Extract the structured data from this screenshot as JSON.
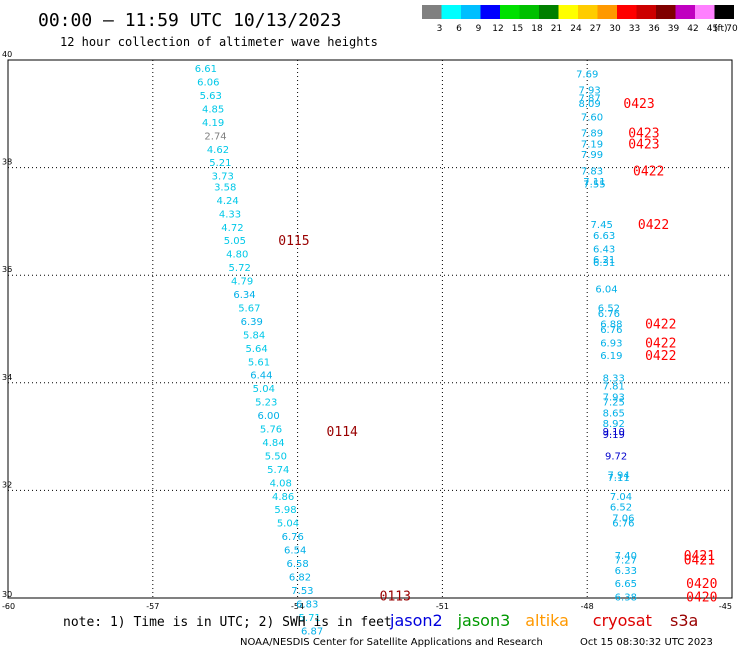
{
  "header": {
    "title": "00:00 – 11:59 UTC 10/13/2023",
    "subtitle": "12 hour collection of altimeter wave heights"
  },
  "legend_scale": {
    "colors": [
      "#808080",
      "#00ffff",
      "#00bfff",
      "#0000ff",
      "#00e000",
      "#00c000",
      "#008000",
      "#ffff00",
      "#ffcc00",
      "#ff9900",
      "#ff0000",
      "#cc0000",
      "#800000",
      "#c000c0",
      "#ff80ff",
      "#000000"
    ],
    "labels": [
      "3",
      "6",
      "9",
      "12",
      "15",
      "18",
      "21",
      "24",
      "27",
      "30",
      "33",
      "36",
      "39",
      "42",
      "45",
      "70"
    ],
    "unit": "(ft)"
  },
  "footer": {
    "note": "note: 1) Time is in UTC; 2) SWH is in feet",
    "credit": "NOAA/NESDIS Center for Satellite Applications and Research",
    "timestamp": "Oct 15 08:30:32 UTC 2023",
    "satellites": [
      {
        "name": "jason2",
        "color": "#0000dd"
      },
      {
        "name": "jason3",
        "color": "#009900"
      },
      {
        "name": "altika",
        "color": "#ff9900"
      },
      {
        "name": "cryosat",
        "color": "#dd0000"
      },
      {
        "name": "s3a",
        "color": "#990000"
      }
    ]
  },
  "chart_data": {
    "type": "scatter",
    "xlim": [
      -60,
      -45
    ],
    "ylim": [
      30,
      40
    ],
    "x_ticks": [
      -60,
      -57,
      -54,
      -51,
      -48,
      -45
    ],
    "y_ticks": [
      30,
      32,
      34,
      36,
      38,
      40
    ],
    "grid": true,
    "track_labels": [
      {
        "text": "0115",
        "x": -54.4,
        "y": 36.65,
        "color": "#990000"
      },
      {
        "text": "0114",
        "x": -53.4,
        "y": 33.1,
        "color": "#990000"
      },
      {
        "text": "0113",
        "x": -52.3,
        "y": 30.05,
        "color": "#990000"
      },
      {
        "text": "0423",
        "x": -47.25,
        "y": 39.2,
        "color": "#ff0000"
      },
      {
        "text": "0423",
        "x": -47.15,
        "y": 38.65,
        "color": "#ff0000"
      },
      {
        "text": "0423",
        "x": -47.15,
        "y": 38.45,
        "color": "#ff0000"
      },
      {
        "text": "0422",
        "x": -47.05,
        "y": 37.95,
        "color": "#ff0000"
      },
      {
        "text": "0422",
        "x": -46.95,
        "y": 36.95,
        "color": "#ff0000"
      },
      {
        "text": "0422",
        "x": -46.8,
        "y": 35.1,
        "color": "#ff0000"
      },
      {
        "text": "0422",
        "x": -46.8,
        "y": 34.75,
        "color": "#ff0000"
      },
      {
        "text": "0422",
        "x": -46.8,
        "y": 34.52,
        "color": "#ff0000"
      },
      {
        "text": "0421",
        "x": -46.0,
        "y": 30.8,
        "color": "#ff0000"
      },
      {
        "text": "0421",
        "x": -46.0,
        "y": 30.72,
        "color": "#ff0000"
      },
      {
        "text": "0420",
        "x": -45.95,
        "y": 30.28,
        "color": "#ff0000"
      },
      {
        "text": "0420",
        "x": -45.95,
        "y": 30.03,
        "color": "#ff0000"
      }
    ],
    "points": [
      {
        "label": "6.61",
        "x": -55.9,
        "y": 39.85,
        "color": "#00c8e8"
      },
      {
        "label": "6.06",
        "x": -55.85,
        "y": 39.6,
        "color": "#00c8e8"
      },
      {
        "label": "5.63",
        "x": -55.8,
        "y": 39.35,
        "color": "#00c8e8"
      },
      {
        "label": "4.85",
        "x": -55.75,
        "y": 39.1,
        "color": "#00c8e8"
      },
      {
        "label": "4.19",
        "x": -55.75,
        "y": 38.85,
        "color": "#00c8e8"
      },
      {
        "label": "2.74",
        "x": -55.7,
        "y": 38.6,
        "color": "#808080"
      },
      {
        "label": "4.62",
        "x": -55.65,
        "y": 38.35,
        "color": "#00c8e8"
      },
      {
        "label": "5.21",
        "x": -55.6,
        "y": 38.1,
        "color": "#00c8e8"
      },
      {
        "label": "3.73",
        "x": -55.55,
        "y": 37.85,
        "color": "#00c8e8"
      },
      {
        "label": "3.58",
        "x": -55.5,
        "y": 37.65,
        "color": "#00c8e8"
      },
      {
        "label": "4.24",
        "x": -55.45,
        "y": 37.4,
        "color": "#00c8e8"
      },
      {
        "label": "4.33",
        "x": -55.4,
        "y": 37.15,
        "color": "#00c8e8"
      },
      {
        "label": "4.72",
        "x": -55.35,
        "y": 36.9,
        "color": "#00c8e8"
      },
      {
        "label": "5.05",
        "x": -55.3,
        "y": 36.65,
        "color": "#00c8e8"
      },
      {
        "label": "4.80",
        "x": -55.25,
        "y": 36.4,
        "color": "#00c8e8"
      },
      {
        "label": "5.72",
        "x": -55.2,
        "y": 36.15,
        "color": "#00c8e8"
      },
      {
        "label": "4.79",
        "x": -55.15,
        "y": 35.9,
        "color": "#00c8e8"
      },
      {
        "label": "6.34",
        "x": -55.1,
        "y": 35.65,
        "color": "#00b0e8"
      },
      {
        "label": "5.67",
        "x": -55.0,
        "y": 35.4,
        "color": "#00c8e8"
      },
      {
        "label": "6.39",
        "x": -54.95,
        "y": 35.15,
        "color": "#00b0e8"
      },
      {
        "label": "5.84",
        "x": -54.9,
        "y": 34.9,
        "color": "#00c8e8"
      },
      {
        "label": "5.64",
        "x": -54.85,
        "y": 34.65,
        "color": "#00c8e8"
      },
      {
        "label": "5.61",
        "x": -54.8,
        "y": 34.4,
        "color": "#00c8e8"
      },
      {
        "label": "6.44",
        "x": -54.75,
        "y": 34.15,
        "color": "#00b0e8"
      },
      {
        "label": "5.04",
        "x": -54.7,
        "y": 33.9,
        "color": "#00c8e8"
      },
      {
        "label": "5.23",
        "x": -54.65,
        "y": 33.65,
        "color": "#00c8e8"
      },
      {
        "label": "6.00",
        "x": -54.6,
        "y": 33.4,
        "color": "#00b0e8"
      },
      {
        "label": "5.76",
        "x": -54.55,
        "y": 33.15,
        "color": "#00c8e8"
      },
      {
        "label": "4.84",
        "x": -54.5,
        "y": 32.9,
        "color": "#00c8e8"
      },
      {
        "label": "5.50",
        "x": -54.45,
        "y": 32.65,
        "color": "#00c8e8"
      },
      {
        "label": "5.74",
        "x": -54.4,
        "y": 32.4,
        "color": "#00c8e8"
      },
      {
        "label": "4.08",
        "x": -54.35,
        "y": 32.15,
        "color": "#00c8e8"
      },
      {
        "label": "4.86",
        "x": -54.3,
        "y": 31.9,
        "color": "#00c8e8"
      },
      {
        "label": "5.98",
        "x": -54.25,
        "y": 31.65,
        "color": "#00c8e8"
      },
      {
        "label": "5.04",
        "x": -54.2,
        "y": 31.4,
        "color": "#00c8e8"
      },
      {
        "label": "6.76",
        "x": -54.1,
        "y": 31.15,
        "color": "#00b0e8"
      },
      {
        "label": "6.54",
        "x": -54.05,
        "y": 30.9,
        "color": "#00b0e8"
      },
      {
        "label": "6.58",
        "x": -54.0,
        "y": 30.65,
        "color": "#00b0e8"
      },
      {
        "label": "6.82",
        "x": -53.95,
        "y": 30.4,
        "color": "#00b0e8"
      },
      {
        "label": "7.53",
        "x": -53.9,
        "y": 30.15,
        "color": "#00b0e8"
      },
      {
        "label": "6.83",
        "x": -53.8,
        "y": 29.9,
        "color": "#00b0e8"
      },
      {
        "label": "5.71",
        "x": -53.75,
        "y": 29.65,
        "color": "#00c8e8"
      },
      {
        "label": "6.87",
        "x": -53.7,
        "y": 29.4,
        "color": "#00b0e8"
      },
      {
        "label": "7.69",
        "x": -48.0,
        "y": 39.75,
        "color": "#00b0e8"
      },
      {
        "label": "7.93",
        "x": -47.95,
        "y": 39.45,
        "color": "#00b0e8"
      },
      {
        "label": "7.87",
        "x": -47.95,
        "y": 39.3,
        "color": "#00b0e8"
      },
      {
        "label": "8.09",
        "x": -47.95,
        "y": 39.2,
        "color": "#00b0e8"
      },
      {
        "label": "7.60",
        "x": -47.9,
        "y": 38.95,
        "color": "#00b0e8"
      },
      {
        "label": "7.89",
        "x": -47.9,
        "y": 38.65,
        "color": "#00b0e8"
      },
      {
        "label": "7.19",
        "x": -47.9,
        "y": 38.45,
        "color": "#00b0e8"
      },
      {
        "label": "7.99",
        "x": -47.9,
        "y": 38.25,
        "color": "#00b0e8"
      },
      {
        "label": "7.83",
        "x": -47.9,
        "y": 37.95,
        "color": "#00b0e8"
      },
      {
        "label": "7.11",
        "x": -47.85,
        "y": 37.75,
        "color": "#00b0e8"
      },
      {
        "label": "7.55",
        "x": -47.85,
        "y": 37.7,
        "color": "#00b0e8"
      },
      {
        "label": "7.45",
        "x": -47.7,
        "y": 36.95,
        "color": "#00b0e8"
      },
      {
        "label": "6.63",
        "x": -47.65,
        "y": 36.75,
        "color": "#00b0e8"
      },
      {
        "label": "6.43",
        "x": -47.65,
        "y": 36.5,
        "color": "#00b0e8"
      },
      {
        "label": "6.21",
        "x": -47.65,
        "y": 36.3,
        "color": "#00b0e8"
      },
      {
        "label": "6.31",
        "x": -47.65,
        "y": 36.25,
        "color": "#00b0e8"
      },
      {
        "label": "6.04",
        "x": -47.6,
        "y": 35.75,
        "color": "#00b0e8"
      },
      {
        "label": "6.52",
        "x": -47.55,
        "y": 35.4,
        "color": "#00b0e8"
      },
      {
        "label": "6.76",
        "x": -47.55,
        "y": 35.3,
        "color": "#00b0e8"
      },
      {
        "label": "6.88",
        "x": -47.5,
        "y": 35.1,
        "color": "#00b0e8"
      },
      {
        "label": "6.76",
        "x": -47.5,
        "y": 35.0,
        "color": "#00b0e8"
      },
      {
        "label": "6.93",
        "x": -47.5,
        "y": 34.75,
        "color": "#00b0e8"
      },
      {
        "label": "6.19",
        "x": -47.5,
        "y": 34.52,
        "color": "#00b0e8"
      },
      {
        "label": "8.33",
        "x": -47.45,
        "y": 34.1,
        "color": "#00b0e8"
      },
      {
        "label": "7.81",
        "x": -47.45,
        "y": 33.95,
        "color": "#00b0e8"
      },
      {
        "label": "7.93",
        "x": -47.45,
        "y": 33.75,
        "color": "#00b0e8"
      },
      {
        "label": "7.25",
        "x": -47.45,
        "y": 33.65,
        "color": "#00b0e8"
      },
      {
        "label": "8.65",
        "x": -47.45,
        "y": 33.45,
        "color": "#00b0e8"
      },
      {
        "label": "8.92",
        "x": -47.45,
        "y": 33.25,
        "color": "#00b0e8"
      },
      {
        "label": "9.10",
        "x": -47.45,
        "y": 33.1,
        "color": "#0000cc"
      },
      {
        "label": "9.19",
        "x": -47.45,
        "y": 33.05,
        "color": "#0000cc"
      },
      {
        "label": "9.72",
        "x": -47.4,
        "y": 32.65,
        "color": "#0000cc"
      },
      {
        "label": "7.94",
        "x": -47.35,
        "y": 32.3,
        "color": "#00b0e8"
      },
      {
        "label": "7.11",
        "x": -47.35,
        "y": 32.25,
        "color": "#00b0e8"
      },
      {
        "label": "7.04",
        "x": -47.3,
        "y": 31.9,
        "color": "#00b0e8"
      },
      {
        "label": "6.52",
        "x": -47.3,
        "y": 31.7,
        "color": "#00b0e8"
      },
      {
        "label": "7.06",
        "x": -47.25,
        "y": 31.5,
        "color": "#00b0e8"
      },
      {
        "label": "6.76",
        "x": -47.25,
        "y": 31.4,
        "color": "#00b0e8"
      },
      {
        "label": "7.40",
        "x": -47.2,
        "y": 30.8,
        "color": "#00b0e8"
      },
      {
        "label": "7.27",
        "x": -47.2,
        "y": 30.72,
        "color": "#00b0e8"
      },
      {
        "label": "6.33",
        "x": -47.2,
        "y": 30.52,
        "color": "#00b0e8"
      },
      {
        "label": "6.65",
        "x": -47.2,
        "y": 30.28,
        "color": "#00b0e8"
      },
      {
        "label": "6.38",
        "x": -47.2,
        "y": 30.03,
        "color": "#00b0e8"
      }
    ]
  }
}
